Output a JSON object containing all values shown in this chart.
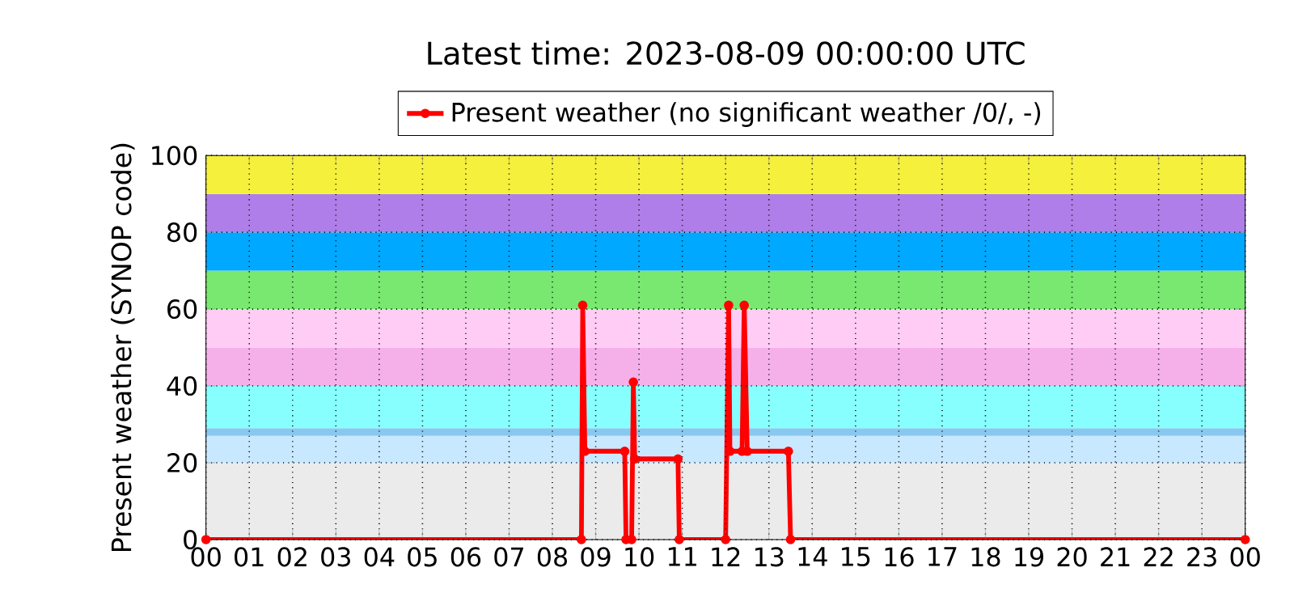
{
  "chart_data": {
    "type": "line",
    "title": "Latest time: 2023-08-09 00:00:00 UTC",
    "ylabel": "Present weather (SYNOP code)",
    "x": [
      0,
      8.67,
      8.7,
      8.75,
      9.67,
      9.7,
      9.83,
      9.87,
      9.9,
      10.9,
      10.93,
      12.0,
      12.07,
      12.1,
      12.38,
      12.43,
      12.5,
      13.45,
      13.5,
      24
    ],
    "series": [
      {
        "name": "Present weather (no significant weather /0/, -)",
        "color": "#ff0000",
        "values": [
          0,
          0,
          61,
          23,
          23,
          0,
          0,
          41,
          21,
          21,
          0,
          0,
          61,
          23,
          23,
          61,
          23,
          23,
          0,
          0
        ]
      }
    ],
    "xlim": [
      0,
      24
    ],
    "xticks": [
      {
        "value": 0,
        "label": "00"
      },
      {
        "value": 1,
        "label": "01"
      },
      {
        "value": 2,
        "label": "02"
      },
      {
        "value": 3,
        "label": "03"
      },
      {
        "value": 4,
        "label": "04"
      },
      {
        "value": 5,
        "label": "05"
      },
      {
        "value": 6,
        "label": "06"
      },
      {
        "value": 7,
        "label": "07"
      },
      {
        "value": 8,
        "label": "08"
      },
      {
        "value": 9,
        "label": "09"
      },
      {
        "value": 10,
        "label": "10"
      },
      {
        "value": 11,
        "label": "11"
      },
      {
        "value": 12,
        "label": "12"
      },
      {
        "value": 13,
        "label": "13"
      },
      {
        "value": 14,
        "label": "14"
      },
      {
        "value": 15,
        "label": "15"
      },
      {
        "value": 16,
        "label": "16"
      },
      {
        "value": 17,
        "label": "17"
      },
      {
        "value": 18,
        "label": "18"
      },
      {
        "value": 19,
        "label": "19"
      },
      {
        "value": 20,
        "label": "20"
      },
      {
        "value": 21,
        "label": "21"
      },
      {
        "value": 22,
        "label": "22"
      },
      {
        "value": 23,
        "label": "23"
      },
      {
        "value": 24,
        "label": "00"
      }
    ],
    "ylim": [
      0,
      100
    ],
    "yticks": [
      0,
      20,
      40,
      60,
      80,
      100
    ],
    "bands": [
      {
        "axis": "y",
        "from": 0,
        "to": 20,
        "color": "#ebebeb"
      },
      {
        "axis": "y",
        "from": 20,
        "to": 27,
        "color": "#c8e8ff"
      },
      {
        "axis": "y",
        "from": 27,
        "to": 29,
        "color": "#88c8f0"
      },
      {
        "axis": "y",
        "from": 29,
        "to": 40,
        "color": "#88ffff"
      },
      {
        "axis": "y",
        "from": 40,
        "to": 50,
        "color": "#f5b0ea"
      },
      {
        "axis": "y",
        "from": 50,
        "to": 60,
        "color": "#ffccf5"
      },
      {
        "axis": "y",
        "from": 60,
        "to": 70,
        "color": "#78e870"
      },
      {
        "axis": "y",
        "from": 70,
        "to": 80,
        "color": "#00a8ff"
      },
      {
        "axis": "y",
        "from": 80,
        "to": 90,
        "color": "#b07ee8"
      },
      {
        "axis": "y",
        "from": 90,
        "to": 100,
        "color": "#f5f03c"
      }
    ],
    "grid": true,
    "legend": "top",
    "marker": "circle",
    "line_style": "solid"
  }
}
